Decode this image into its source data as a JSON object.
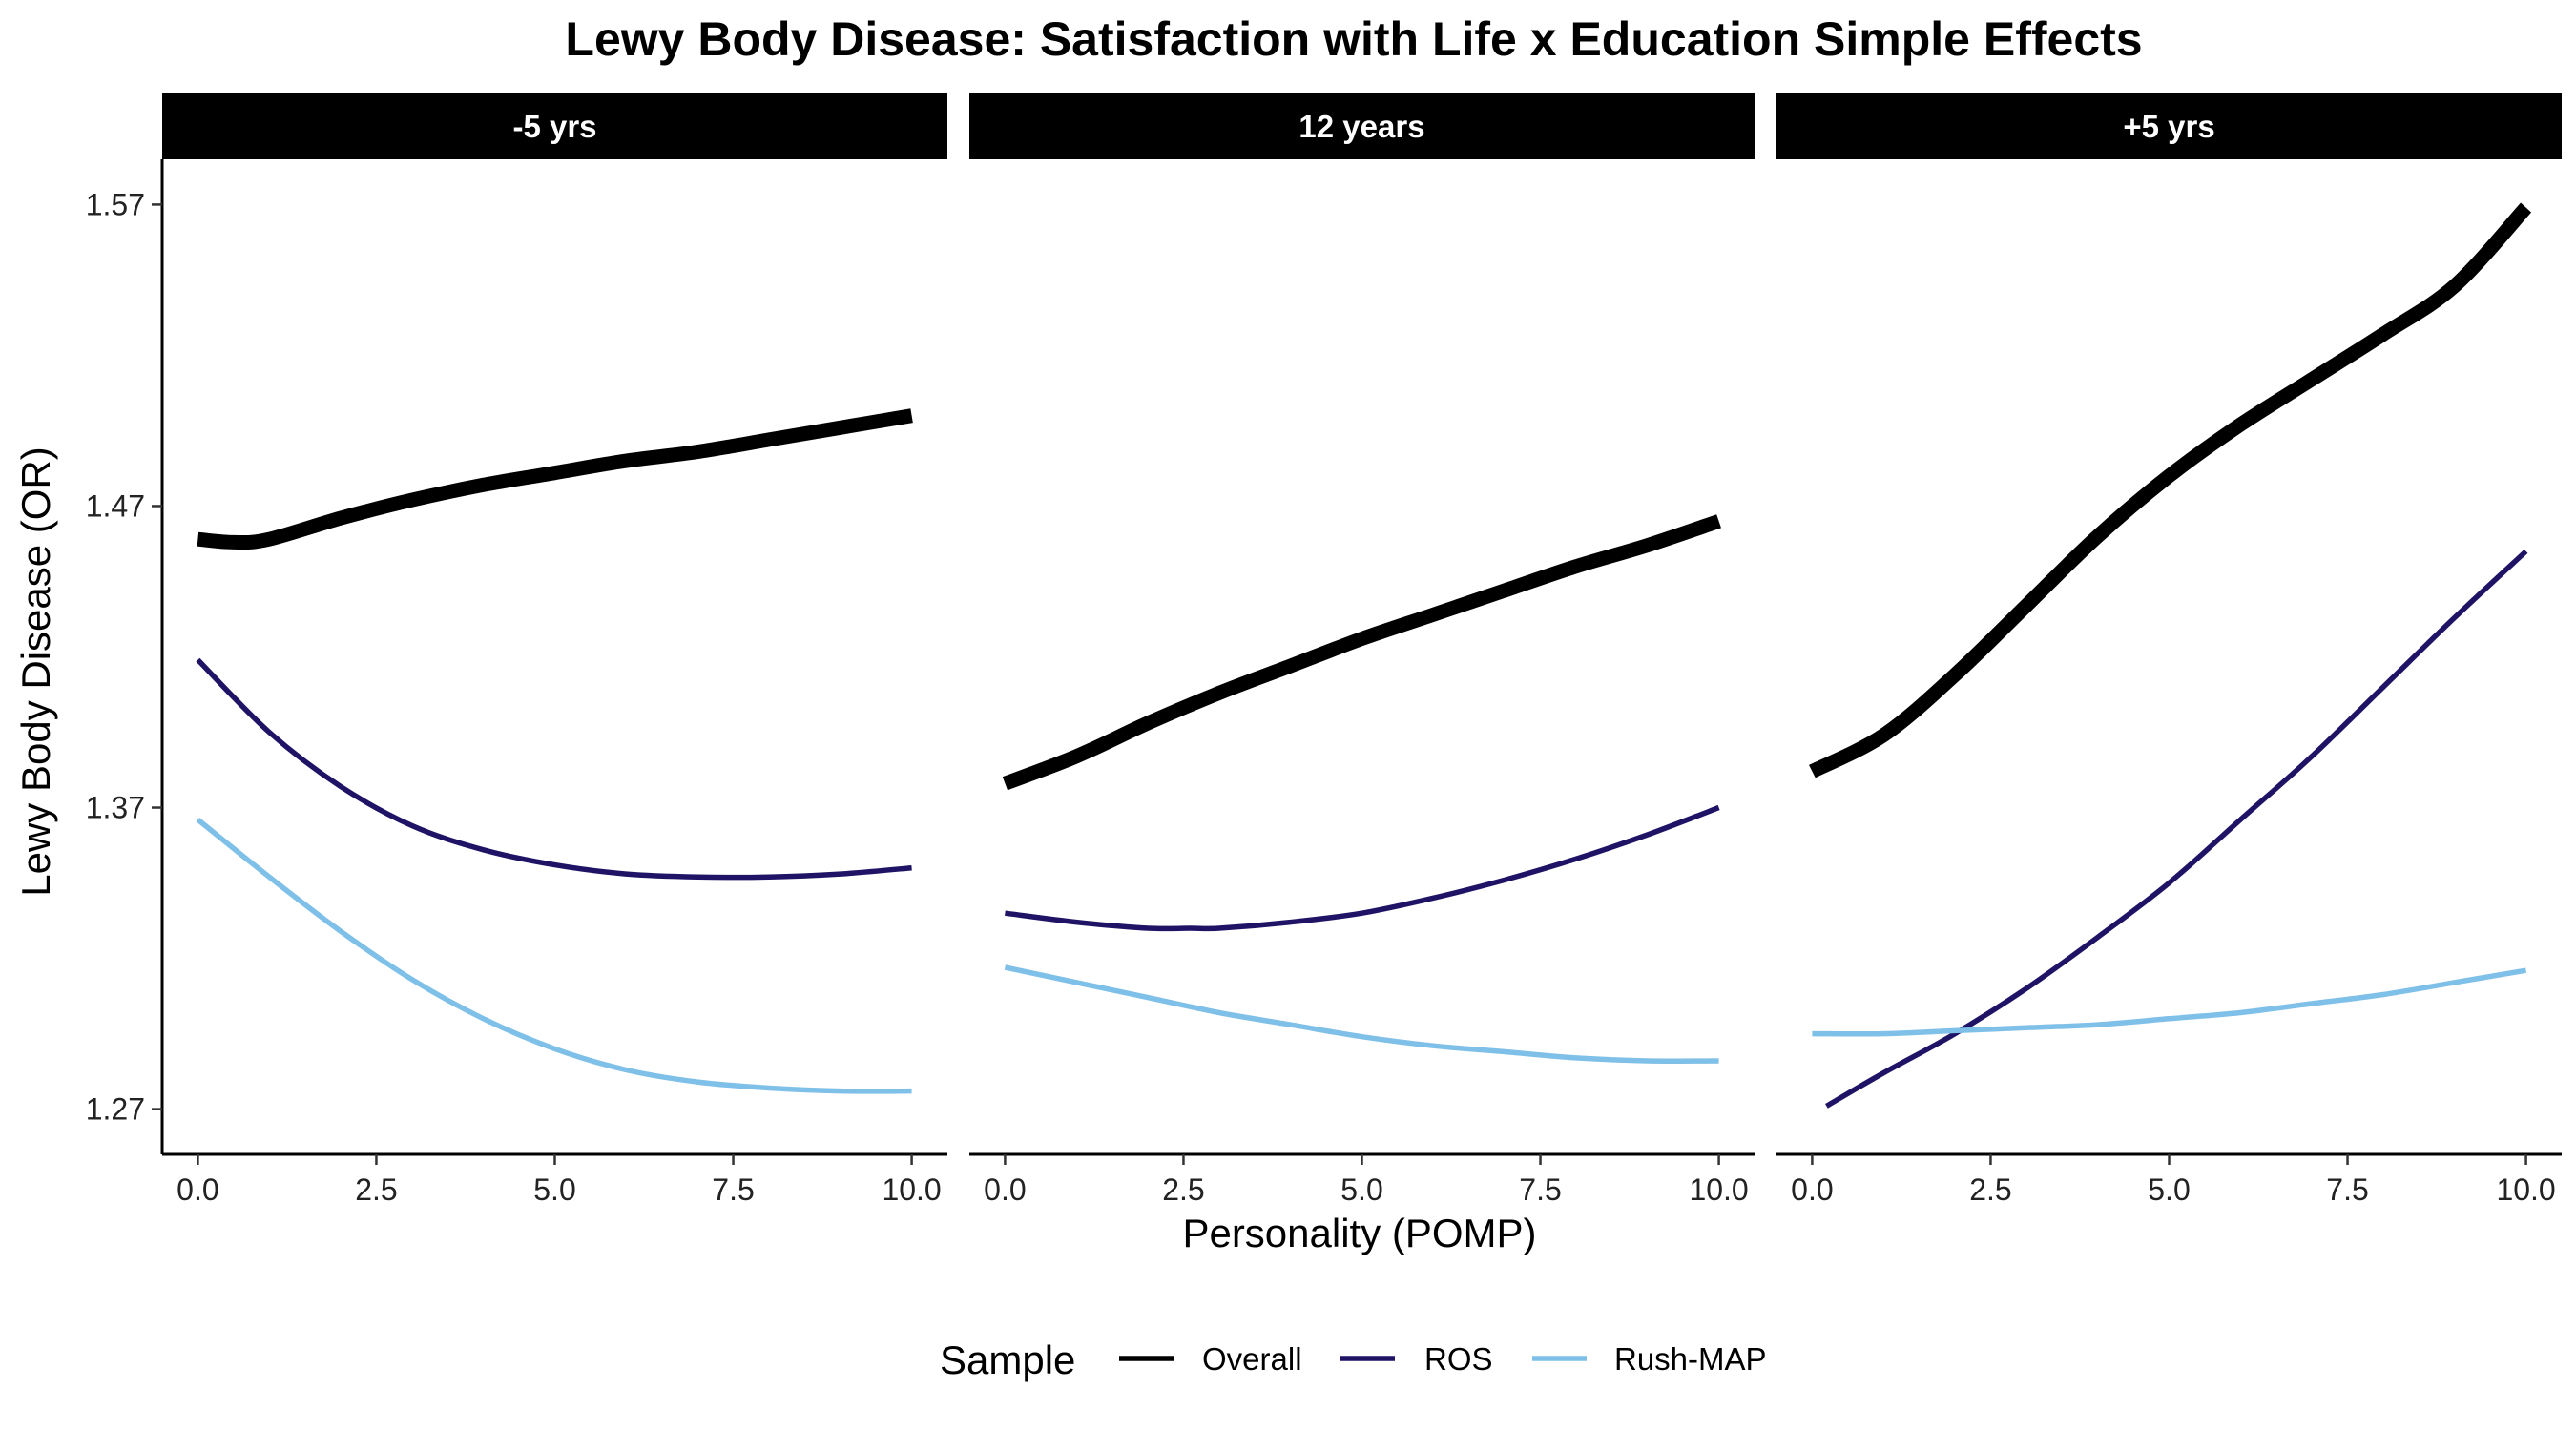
{
  "chart_data": {
    "type": "line",
    "title": "Lewy Body Disease: Satisfaction with Life x Education Simple Effects",
    "xlabel": "Personality (POMP)",
    "ylabel": "Lewy Body Disease (OR)",
    "xlim": [
      -0.5,
      10.5
    ],
    "ylim": [
      1.255,
      1.585
    ],
    "x_ticks": [
      0,
      2.5,
      5,
      7.5,
      10
    ],
    "x_tick_labels": [
      "0.0",
      "2.5",
      "5.0",
      "7.5",
      "10.0"
    ],
    "y_ticks": [
      1.27,
      1.37,
      1.47,
      1.57
    ],
    "y_tick_labels": [
      "1.27",
      "1.37",
      "1.47",
      "1.57"
    ],
    "grid": false,
    "legend": {
      "title": "Sample",
      "position": "bottom",
      "entries": [
        "Overall",
        "ROS",
        "Rush-MAP"
      ]
    },
    "series_styles": [
      {
        "name": "Overall",
        "color": "#000000",
        "weight": "thick"
      },
      {
        "name": "ROS",
        "color": "#1f1366",
        "weight": "medium"
      },
      {
        "name": "Rush-MAP",
        "color": "#7fc0e8",
        "weight": "medium"
      }
    ],
    "panels": [
      {
        "label": "-5 yrs",
        "series": [
          {
            "name": "Overall",
            "x": [
              0,
              0.5,
              1,
              2,
              3,
              4,
              5,
              6,
              7,
              8,
              9,
              10
            ],
            "y": [
              1.459,
              1.458,
              1.459,
              1.466,
              1.472,
              1.477,
              1.481,
              1.485,
              1.488,
              1.492,
              1.496,
              1.5
            ]
          },
          {
            "name": "ROS",
            "x": [
              0,
              1,
              2,
              3,
              4,
              5,
              6,
              7,
              8,
              9,
              10
            ],
            "y": [
              1.419,
              1.395,
              1.377,
              1.364,
              1.356,
              1.351,
              1.348,
              1.347,
              1.347,
              1.348,
              1.35
            ]
          },
          {
            "name": "Rush-MAP",
            "x": [
              0,
              1,
              2,
              3,
              4,
              5,
              6,
              7,
              8,
              9,
              10
            ],
            "y": [
              1.366,
              1.347,
              1.329,
              1.313,
              1.3,
              1.29,
              1.283,
              1.279,
              1.277,
              1.276,
              1.276
            ]
          }
        ]
      },
      {
        "label": "12 years",
        "series": [
          {
            "name": "Overall",
            "x": [
              0,
              1,
              2,
              3,
              4,
              5,
              6,
              7,
              8,
              9,
              10
            ],
            "y": [
              1.378,
              1.387,
              1.398,
              1.408,
              1.417,
              1.426,
              1.434,
              1.442,
              1.45,
              1.457,
              1.465
            ]
          },
          {
            "name": "ROS",
            "x": [
              0,
              1,
              2,
              2.6,
              3,
              4,
              5,
              6,
              7,
              8,
              9,
              10
            ],
            "y": [
              1.335,
              1.332,
              1.33,
              1.33,
              1.33,
              1.332,
              1.335,
              1.34,
              1.346,
              1.353,
              1.361,
              1.37
            ]
          },
          {
            "name": "Rush-MAP",
            "x": [
              0,
              1,
              2,
              3,
              4,
              5,
              6,
              7,
              8,
              9,
              10
            ],
            "y": [
              1.317,
              1.312,
              1.307,
              1.302,
              1.298,
              1.294,
              1.291,
              1.289,
              1.287,
              1.286,
              1.286
            ]
          }
        ]
      },
      {
        "label": "+5 yrs",
        "series": [
          {
            "name": "Overall",
            "x": [
              0,
              1,
              2,
              3,
              4,
              5,
              6,
              7,
              8,
              9,
              10
            ],
            "y": [
              1.382,
              1.394,
              1.414,
              1.437,
              1.46,
              1.48,
              1.497,
              1.512,
              1.527,
              1.543,
              1.569
            ]
          },
          {
            "name": "ROS",
            "x": [
              0.2,
              1,
              2,
              3,
              4,
              5,
              6,
              7,
              8,
              9,
              10
            ],
            "y": [
              1.271,
              1.282,
              1.295,
              1.31,
              1.327,
              1.345,
              1.366,
              1.387,
              1.41,
              1.433,
              1.455
            ]
          },
          {
            "name": "Rush-MAP",
            "x": [
              0,
              1,
              2,
              3,
              4,
              5,
              6,
              7,
              8,
              9,
              10
            ],
            "y": [
              1.295,
              1.295,
              1.296,
              1.297,
              1.298,
              1.3,
              1.302,
              1.305,
              1.308,
              1.312,
              1.316
            ]
          }
        ]
      }
    ]
  }
}
